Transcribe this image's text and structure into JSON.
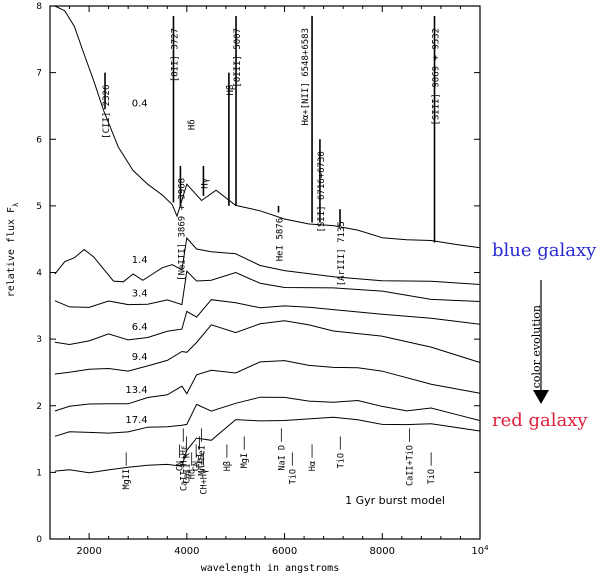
{
  "chart_data": {
    "type": "line",
    "ylabel": "relative flux F",
    "ylabel_sub": "λ",
    "xlabel": "wavelength in angstroms",
    "xlim": [
      1200,
      10000
    ],
    "ylim": [
      0,
      8
    ],
    "x_ticks": [
      "2000",
      "4000",
      "6000",
      "8000",
      "10"
    ],
    "x_tick_last_exp": "4",
    "y_ticks": [
      "0",
      "1",
      "2",
      "3",
      "4",
      "5",
      "6",
      "7",
      "8"
    ],
    "annotation": "1 Gyr burst model",
    "side_labels": {
      "blue": "blue galaxy",
      "red": "red galaxy",
      "evolution": "color evolution",
      "blue_color": "#2a2ad6",
      "red_color": "#e0203a"
    },
    "series": [
      {
        "name": "0.4",
        "x": [
          1300,
          1500,
          1700,
          1900,
          2100,
          2300,
          2600,
          2900,
          3200,
          3500,
          3700,
          3800,
          4000,
          4300,
          4600,
          5000,
          5500,
          6000,
          6500,
          7000,
          7500,
          8000,
          8500,
          9000,
          9500,
          10000
        ],
        "y": [
          8.0,
          7.9,
          7.7,
          7.3,
          6.85,
          6.4,
          5.9,
          5.55,
          5.3,
          5.15,
          5.05,
          4.85,
          5.25,
          5.2,
          5.15,
          5.0,
          4.9,
          4.82,
          4.75,
          4.68,
          4.62,
          4.55,
          4.5,
          4.45,
          4.42,
          4.4
        ]
      },
      {
        "name": "1.4",
        "x": [
          1300,
          1500,
          1700,
          1900,
          2100,
          2300,
          2500,
          2700,
          2900,
          3100,
          3300,
          3500,
          3700,
          3900,
          4000,
          4200,
          4500,
          5000,
          5500,
          6000,
          7000,
          8000,
          9000,
          10000
        ],
        "y": [
          3.95,
          4.15,
          4.25,
          4.35,
          4.2,
          4.05,
          3.9,
          3.85,
          3.95,
          3.9,
          4.0,
          4.05,
          4.1,
          4.1,
          4.4,
          4.45,
          4.3,
          4.2,
          4.1,
          4.0,
          3.95,
          3.9,
          3.85,
          3.8
        ]
      },
      {
        "name": "3.4",
        "x": [
          1300,
          1600,
          2000,
          2400,
          2800,
          3200,
          3600,
          3900,
          4000,
          4200,
          4500,
          5000,
          5500,
          6000,
          7000,
          8000,
          9000,
          10000
        ],
        "y": [
          3.55,
          3.5,
          3.5,
          3.55,
          3.5,
          3.55,
          3.6,
          3.6,
          3.9,
          3.95,
          3.9,
          3.9,
          3.85,
          3.8,
          3.75,
          3.7,
          3.62,
          3.58
        ]
      },
      {
        "name": "6.4",
        "x": [
          1300,
          1600,
          2000,
          2400,
          2800,
          3200,
          3600,
          3900,
          4000,
          4200,
          4500,
          5000,
          5500,
          6000,
          6500,
          7000,
          8000,
          9000,
          10000
        ],
        "y": [
          2.95,
          2.95,
          2.97,
          3.05,
          3.0,
          3.05,
          3.1,
          3.12,
          3.35,
          3.45,
          3.5,
          3.55,
          3.5,
          3.5,
          3.45,
          3.45,
          3.4,
          3.3,
          3.2
        ]
      },
      {
        "name": "9.4",
        "x": [
          1300,
          1600,
          2000,
          2400,
          2800,
          3200,
          3600,
          3900,
          4000,
          4200,
          4500,
          5000,
          5500,
          6000,
          6500,
          7000,
          8000,
          9000,
          10000
        ],
        "y": [
          2.5,
          2.52,
          2.52,
          2.55,
          2.55,
          2.6,
          2.65,
          2.7,
          2.85,
          3.0,
          3.1,
          3.2,
          3.25,
          3.25,
          3.2,
          3.15,
          3.05,
          2.85,
          2.65
        ]
      },
      {
        "name": "13.4",
        "x": [
          1300,
          1600,
          2000,
          2400,
          2800,
          3200,
          3600,
          3900,
          4000,
          4200,
          4500,
          5000,
          5500,
          6000,
          6500,
          7000,
          7500,
          8000,
          9000,
          10000
        ],
        "y": [
          1.95,
          1.98,
          2.0,
          2.05,
          2.05,
          2.1,
          2.15,
          2.2,
          2.3,
          2.4,
          2.5,
          2.6,
          2.65,
          2.65,
          2.62,
          2.6,
          2.55,
          2.5,
          2.35,
          2.2
        ]
      },
      {
        "name": "17.4",
        "x": [
          1300,
          1600,
          2000,
          2400,
          2800,
          3200,
          3600,
          3900,
          4000,
          4200,
          4500,
          5000,
          5500,
          6000,
          6500,
          7000,
          7500,
          8000,
          8500,
          9000,
          9500,
          10000
        ],
        "y": [
          1.55,
          1.58,
          1.6,
          1.62,
          1.6,
          1.65,
          1.7,
          1.72,
          1.8,
          1.9,
          2.0,
          2.05,
          2.1,
          2.12,
          2.1,
          2.05,
          2.05,
          2.0,
          1.95,
          1.95,
          1.85,
          1.8
        ]
      },
      {
        "name": "",
        "x": [
          1300,
          1600,
          2000,
          2400,
          2800,
          3200,
          3600,
          3900,
          4000,
          4200,
          4500,
          5000,
          5500,
          6000,
          6500,
          7000,
          7500,
          8000,
          8500,
          9000,
          9500,
          10000
        ],
        "y": [
          1.0,
          1.02,
          1.02,
          1.05,
          1.05,
          1.1,
          1.15,
          1.2,
          1.3,
          1.45,
          1.6,
          1.7,
          1.75,
          1.8,
          1.82,
          1.8,
          1.78,
          1.75,
          1.72,
          1.7,
          1.68,
          1.65
        ]
      }
    ],
    "emission_lines": [
      {
        "x": 2326,
        "top": 7.0,
        "base": 6.45,
        "label": "[CII] 2326"
      },
      {
        "x": 3727,
        "top": 7.85,
        "base": 5.05,
        "label": "[OII] 3727"
      },
      {
        "x": 3869,
        "top": 5.6,
        "base": 5.0,
        "label": "[NeIII] 3869 + 3968"
      },
      {
        "x": 4340,
        "top": 5.6,
        "base": 5.15,
        "label": "Hγ"
      },
      {
        "x": 4861,
        "top": 7.0,
        "base": 5.0,
        "label": "Hβ"
      },
      {
        "x": 5007,
        "top": 7.85,
        "base": 5.0,
        "label": "[OIII] 5007"
      },
      {
        "x": 5876,
        "top": 5.0,
        "base": 4.9,
        "label": "HeI 5876"
      },
      {
        "x": 6563,
        "top": 7.85,
        "base": 4.75,
        "label": "Hα+[NII] 6548+6583"
      },
      {
        "x": 6724,
        "top": 6.0,
        "base": 4.75,
        "label": "[SII] 6716+6730"
      },
      {
        "x": 7135,
        "top": 4.95,
        "base": 4.7,
        "label": "[ArIII] 7135"
      },
      {
        "x": 9069,
        "top": 7.85,
        "base": 4.45,
        "label": "[SIII] 9069 + 9532"
      }
    ],
    "emission_extra_label": "Hδ",
    "absorption_labels": [
      {
        "x": 2800,
        "label": "MgII"
      },
      {
        "x": 3850,
        "label": "CN"
      },
      {
        "x": 3950,
        "label": "CaII K"
      },
      {
        "x": 3968,
        "label": "CaII H+Hε"
      },
      {
        "x": 4100,
        "label": "Hδ"
      },
      {
        "x": 4150,
        "label": "CN"
      },
      {
        "x": 4300,
        "label": "FeI"
      },
      {
        "x": 4300,
        "label": "Mn+FeI"
      },
      {
        "x": 4300,
        "label": "CH+Hγ"
      },
      {
        "x": 4861,
        "label": "Hβ"
      },
      {
        "x": 5175,
        "label": "MgI"
      },
      {
        "x": 5893,
        "label": "NaI D"
      },
      {
        "x": 6200,
        "label": "TiO"
      },
      {
        "x": 6563,
        "label": "Hα"
      },
      {
        "x": 7100,
        "label": "TiO"
      },
      {
        "x": 8600,
        "label": "CaII+TiO"
      },
      {
        "x": 9000,
        "label": "TiO"
      }
    ]
  }
}
